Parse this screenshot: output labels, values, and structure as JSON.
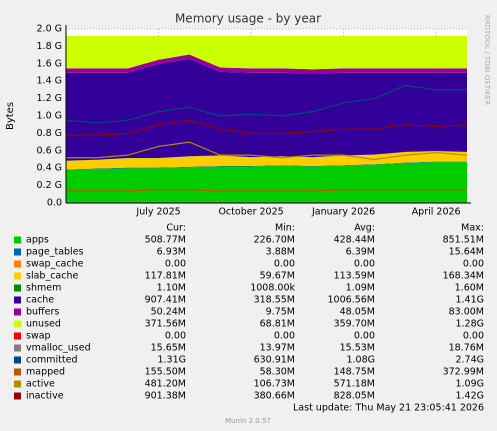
{
  "chart_data": {
    "type": "area",
    "title": "Memory usage - by year",
    "y_label": "Bytes",
    "side_text": "RRDTOOL / TOBI OETIKER",
    "last_update": "Last update: Thu May 21 23:05:41 2026",
    "footer": "Munin 2.0.57",
    "stats_headers": [
      "Cur:",
      "Min:",
      "Avg:",
      "Max:"
    ],
    "x": [
      "2025-04",
      "2025-05",
      "2025-06",
      "2025-07",
      "2025-08",
      "2025-09",
      "2025-10",
      "2025-11",
      "2025-12",
      "2026-01",
      "2026-02",
      "2026-03",
      "2026-04",
      "2026-05"
    ],
    "xlim": [
      "2025-04",
      "2026-05"
    ],
    "xticks": [
      {
        "value": "2025-07",
        "label": "July 2025"
      },
      {
        "value": "2025-10",
        "label": "October 2025"
      },
      {
        "value": "2026-01",
        "label": "January 2026"
      },
      {
        "value": "2026-04",
        "label": "April 2026"
      }
    ],
    "ylim": [
      0,
      2.0
    ],
    "yticks": [
      {
        "value": 0,
        "label": "0.0"
      },
      {
        "value": 0.2,
        "label": "0.2 G"
      },
      {
        "value": 0.4,
        "label": "0.4 G"
      },
      {
        "value": 0.6,
        "label": "0.6 G"
      },
      {
        "value": 0.8,
        "label": "0.8 G"
      },
      {
        "value": 1.0,
        "label": "1.0 G"
      },
      {
        "value": 1.2,
        "label": "1.2 G"
      },
      {
        "value": 1.4,
        "label": "1.4 G"
      },
      {
        "value": 1.6,
        "label": "1.6 G"
      },
      {
        "value": 1.8,
        "label": "1.8 G"
      },
      {
        "value": 2.0,
        "label": "2.0 G"
      }
    ],
    "grid": true,
    "series": [
      {
        "name": "apps",
        "color": "#00cc00",
        "style": "area",
        "stats": [
          "508.77M",
          "226.70M",
          "428.44M",
          "851.51M"
        ],
        "values": [
          0.38,
          0.39,
          0.4,
          0.4,
          0.41,
          0.42,
          0.42,
          0.43,
          0.42,
          0.43,
          0.44,
          0.46,
          0.47,
          0.47
        ]
      },
      {
        "name": "page_tables",
        "color": "#0066b3",
        "style": "area",
        "stats": [
          "6.93M",
          "3.88M",
          "6.39M",
          "15.64M"
        ],
        "values": [
          0.006,
          0.006,
          0.006,
          0.006,
          0.006,
          0.006,
          0.006,
          0.006,
          0.006,
          0.006,
          0.006,
          0.006,
          0.006,
          0.006
        ]
      },
      {
        "name": "swap_cache",
        "color": "#ff8000",
        "style": "area",
        "stats": [
          "0.00",
          "0.00",
          "0.00",
          "0.00"
        ],
        "values": [
          0,
          0,
          0,
          0,
          0,
          0,
          0,
          0,
          0,
          0,
          0,
          0,
          0,
          0
        ]
      },
      {
        "name": "slab_cache",
        "color": "#ffcc00",
        "style": "area",
        "stats": [
          "117.81M",
          "59.67M",
          "113.59M",
          "168.34M"
        ],
        "values": [
          0.1,
          0.1,
          0.11,
          0.11,
          0.12,
          0.12,
          0.1,
          0.1,
          0.1,
          0.11,
          0.11,
          0.12,
          0.12,
          0.11
        ]
      },
      {
        "name": "shmem",
        "color": "#008f00",
        "style": "area",
        "stats": [
          "1.10M",
          "1008.00k",
          "1.09M",
          "1.60M"
        ],
        "values": [
          0.001,
          0.001,
          0.001,
          0.001,
          0.001,
          0.001,
          0.001,
          0.001,
          0.001,
          0.001,
          0.001,
          0.001,
          0.001,
          0.001
        ]
      },
      {
        "name": "cache",
        "color": "#330099",
        "style": "area",
        "stats": [
          "907.41M",
          "318.55M",
          "1006.56M",
          "1.41G"
        ],
        "values": [
          1.01,
          1.0,
          0.98,
          1.08,
          1.12,
          0.96,
          0.97,
          0.96,
          0.96,
          0.95,
          0.94,
          0.91,
          0.9,
          0.91
        ]
      },
      {
        "name": "buffers",
        "color": "#990099",
        "style": "area",
        "stats": [
          "50.24M",
          "9.75M",
          "48.05M",
          "83.00M"
        ],
        "values": [
          0.05,
          0.05,
          0.05,
          0.05,
          0.05,
          0.05,
          0.05,
          0.05,
          0.05,
          0.05,
          0.05,
          0.05,
          0.05,
          0.05
        ]
      },
      {
        "name": "unused",
        "color": "#ccff00",
        "style": "area",
        "stats": [
          "371.56M",
          "68.81M",
          "359.70M",
          "1.28G"
        ],
        "values": [
          0.373,
          0.373,
          0.373,
          0.273,
          0.213,
          0.363,
          0.373,
          0.373,
          0.383,
          0.373,
          0.373,
          0.373,
          0.373,
          0.373
        ]
      },
      {
        "name": "swap",
        "color": "#ff0000",
        "style": "area",
        "stats": [
          "0.00",
          "0.00",
          "0.00",
          "0.00"
        ],
        "values": [
          0,
          0,
          0,
          0,
          0,
          0,
          0,
          0,
          0,
          0,
          0,
          0,
          0,
          0
        ]
      },
      {
        "name": "vmalloc_used",
        "color": "#808080",
        "style": "line",
        "stats": [
          "15.65M",
          "13.97M",
          "15.53M",
          "18.76M"
        ],
        "values": [
          0.015,
          0.015,
          0.015,
          0.015,
          0.015,
          0.015,
          0.015,
          0.015,
          0.015,
          0.015,
          0.015,
          0.015,
          0.015,
          0.015
        ]
      },
      {
        "name": "committed",
        "color": "#00487d",
        "style": "line",
        "stats": [
          "1.31G",
          "630.91M",
          "1.08G",
          "2.74G"
        ],
        "values": [
          0.95,
          0.92,
          0.95,
          1.05,
          1.1,
          1.0,
          1.02,
          1.0,
          1.05,
          1.15,
          1.2,
          1.35,
          1.3,
          1.3
        ]
      },
      {
        "name": "mapped",
        "color": "#b35a00",
        "style": "line",
        "stats": [
          "155.50M",
          "58.30M",
          "148.75M",
          "372.99M"
        ],
        "values": [
          0.14,
          0.14,
          0.14,
          0.15,
          0.15,
          0.14,
          0.14,
          0.14,
          0.14,
          0.15,
          0.15,
          0.15,
          0.15,
          0.15
        ]
      },
      {
        "name": "active",
        "color": "#b38f00",
        "style": "line",
        "stats": [
          "481.20M",
          "106.73M",
          "571.18M",
          "1.09G"
        ],
        "values": [
          0.52,
          0.52,
          0.55,
          0.65,
          0.7,
          0.55,
          0.55,
          0.52,
          0.55,
          0.55,
          0.5,
          0.55,
          0.58,
          0.55
        ]
      },
      {
        "name": "inactive",
        "color": "#990000",
        "style": "line",
        "stats": [
          "901.38M",
          "380.66M",
          "828.05M",
          "1.42G"
        ],
        "values": [
          0.78,
          0.78,
          0.8,
          0.9,
          0.95,
          0.85,
          0.8,
          0.8,
          0.82,
          0.85,
          0.85,
          0.9,
          0.88,
          0.9
        ]
      }
    ]
  }
}
